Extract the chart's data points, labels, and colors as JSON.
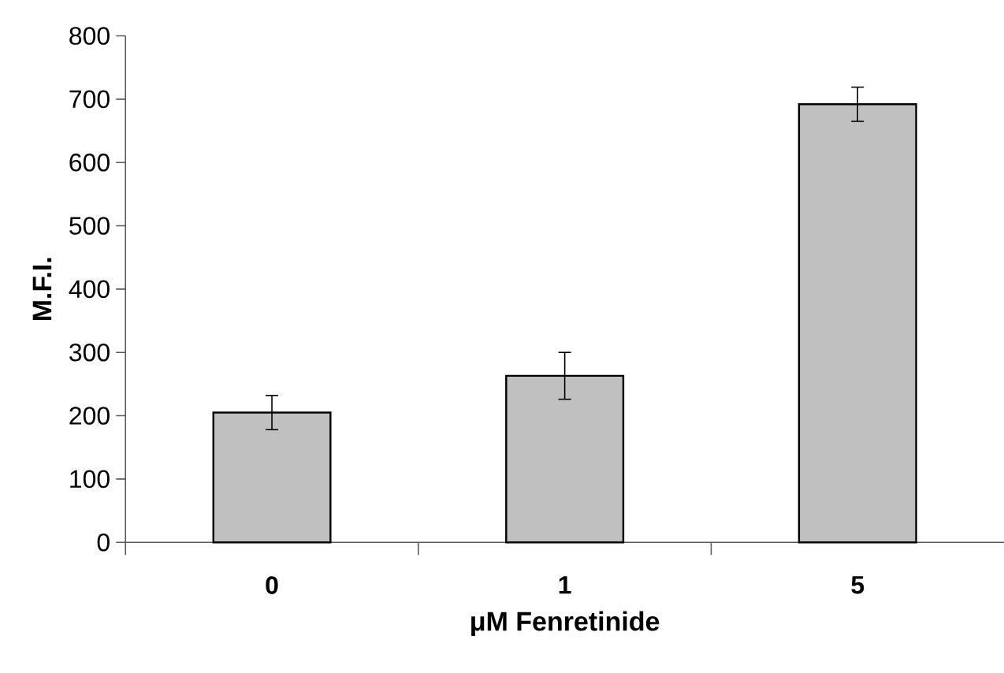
{
  "chart_data": {
    "type": "bar",
    "xlabel": "μM Fenretinide",
    "ylabel": "M.F.I.",
    "categories": [
      "0",
      "1",
      "5"
    ],
    "values": [
      205,
      263,
      692
    ],
    "errors": [
      27,
      37,
      27
    ],
    "color": "#c0c0c0",
    "ylim": [
      0,
      800
    ],
    "yticks": [
      0,
      100,
      200,
      300,
      400,
      500,
      600,
      700,
      800
    ],
    "grid": false
  }
}
